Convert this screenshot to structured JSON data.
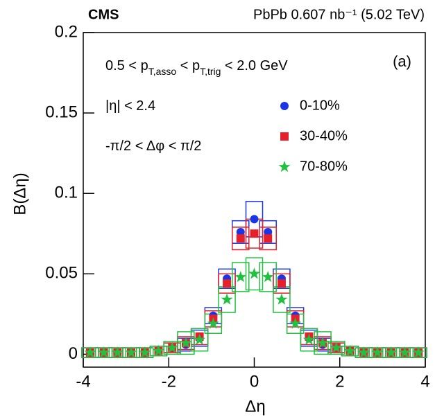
{
  "chart_data": {
    "type": "scatter",
    "experiment": "CMS",
    "dataset": "PbPb 0.607 nb⁻¹ (5.02 TeV)",
    "panel": "(a)",
    "cuts": [
      [
        "0.5 < p",
        "T,asso",
        " < p",
        "T,trig",
        " < 2.0 GeV"
      ],
      [
        "|η| < 2.4"
      ],
      [
        "-π/2 < Δφ < π/2"
      ]
    ],
    "x_label": "Δη",
    "y_label": "B(Δη)",
    "xlim": [
      -4,
      4
    ],
    "ylim": [
      -0.008,
      0.2
    ],
    "xticks": [
      -4,
      -2,
      0,
      2,
      4
    ],
    "yticks": [
      0,
      0.05,
      0.1,
      0.15,
      0.2
    ],
    "x": [
      -3.84,
      -3.52,
      -3.2,
      -2.88,
      -2.56,
      -2.24,
      -1.92,
      -1.6,
      -1.28,
      -0.96,
      -0.64,
      -0.32,
      0,
      0.32,
      0.64,
      0.96,
      1.28,
      1.6,
      1.92,
      2.24,
      2.56,
      2.88,
      3.2,
      3.52,
      3.84
    ],
    "series": [
      {
        "name": "0-10%",
        "color": "#1a35e6",
        "marker": "circle",
        "values": [
          0.001,
          0.001,
          0.001,
          0.001,
          0.001,
          0.002,
          0.004,
          0.006,
          0.01,
          0.024,
          0.047,
          0.076,
          0.084,
          0.076,
          0.047,
          0.024,
          0.01,
          0.006,
          0.004,
          0.002,
          0.001,
          0.001,
          0.001,
          0.001,
          0.001
        ],
        "errors": [
          0.003,
          0.003,
          0.003,
          0.003,
          0.003,
          0.003,
          0.003,
          0.004,
          0.005,
          0.005,
          0.006,
          0.007,
          0.011,
          0.007,
          0.006,
          0.005,
          0.005,
          0.004,
          0.003,
          0.003,
          0.003,
          0.003,
          0.003,
          0.003,
          0.003
        ]
      },
      {
        "name": "30-40%",
        "color": "#e6202a",
        "marker": "square",
        "values": [
          0.001,
          0.001,
          0.001,
          0.001,
          0.001,
          0.002,
          0.004,
          0.007,
          0.011,
          0.022,
          0.044,
          0.072,
          0.075,
          0.072,
          0.044,
          0.022,
          0.011,
          0.007,
          0.004,
          0.002,
          0.001,
          0.001,
          0.001,
          0.001,
          0.001
        ],
        "errors": [
          0.003,
          0.003,
          0.003,
          0.003,
          0.003,
          0.003,
          0.003,
          0.004,
          0.005,
          0.005,
          0.006,
          0.007,
          0.009,
          0.007,
          0.006,
          0.005,
          0.005,
          0.004,
          0.003,
          0.003,
          0.003,
          0.003,
          0.003,
          0.003,
          0.003
        ]
      },
      {
        "name": "70-80%",
        "color": "#22c040",
        "marker": "star",
        "values": [
          0.001,
          0.001,
          0.001,
          0.001,
          0.001,
          0.002,
          0.004,
          0.007,
          0.009,
          0.019,
          0.034,
          0.048,
          0.05,
          0.048,
          0.034,
          0.019,
          0.009,
          0.007,
          0.004,
          0.002,
          0.001,
          0.001,
          0.001,
          0.001,
          0.001
        ],
        "errors": [
          0.003,
          0.003,
          0.003,
          0.003,
          0.003,
          0.003,
          0.004,
          0.007,
          0.007,
          0.006,
          0.008,
          0.009,
          0.01,
          0.009,
          0.008,
          0.006,
          0.007,
          0.007,
          0.004,
          0.003,
          0.003,
          0.003,
          0.003,
          0.003,
          0.003
        ]
      }
    ]
  }
}
